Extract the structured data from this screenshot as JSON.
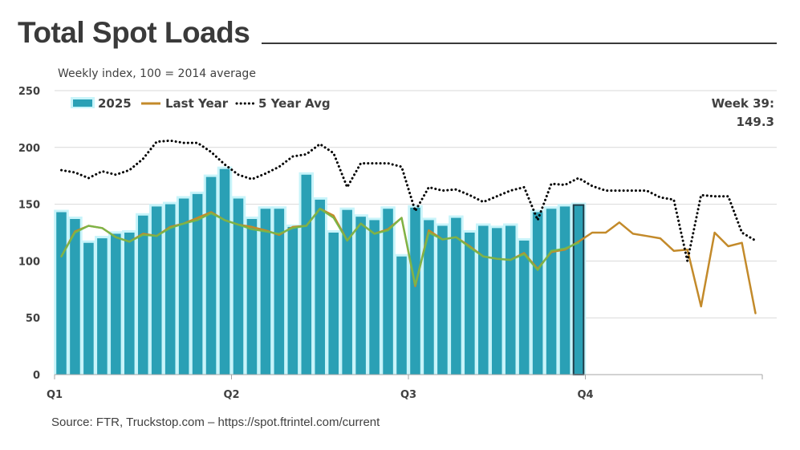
{
  "title": "Total Spot Loads",
  "subtitle": "Weekly index, 100 = 2014 average",
  "callout": {
    "line1": "Week 39:",
    "line2": "149.3"
  },
  "source": "Source: FTR, Truckstop.com – https://spot.ftrintel.com/current",
  "colors": {
    "bars": "#2aa0b5",
    "bar_glow": "#c8f4fa",
    "last_year": "#c38a2a",
    "five_year_avg": "#000000",
    "moving_avg": "#7ab648",
    "highlight_outline": "#1f3b47",
    "grid": "#d9d9d9"
  },
  "chart_data": {
    "type": "bar",
    "title": "Total Spot Loads",
    "subtitle": "Weekly index, 100 = 2014 average",
    "ylim": [
      0,
      250
    ],
    "yticks": [
      0,
      50,
      100,
      150,
      200,
      250
    ],
    "x_total_weeks": 52,
    "quarter_labels": [
      "Q1",
      "Q2",
      "Q3",
      "Q4"
    ],
    "legend": [
      "2025",
      "Last Year",
      "5 Year Avg"
    ],
    "legend_position": "top-left",
    "grid": "horizontal",
    "series": [
      {
        "name": "2025",
        "type": "bar",
        "values": [
          143,
          137,
          116,
          120,
          124,
          125,
          140,
          148,
          150,
          155,
          159,
          174,
          181,
          155,
          137,
          146,
          146,
          130,
          176,
          154,
          125,
          145,
          139,
          136,
          146,
          104,
          147,
          136,
          131,
          138,
          125,
          131,
          129,
          131,
          118,
          143,
          146,
          148,
          149.3
        ]
      },
      {
        "name": "Last Year",
        "type": "line",
        "values": [
          104,
          126,
          131,
          129,
          121,
          117,
          124,
          122,
          130,
          133,
          138,
          143,
          136,
          132,
          130,
          127,
          123,
          130,
          131,
          146,
          140,
          118,
          133,
          124,
          128,
          138,
          78,
          127,
          119,
          121,
          113,
          104,
          102,
          101,
          107,
          93,
          108,
          110,
          117,
          125,
          125,
          134,
          124,
          122,
          120,
          109,
          110,
          60,
          125,
          113,
          116,
          54
        ]
      },
      {
        "name": "5 Year Avg",
        "type": "line",
        "values": [
          180,
          178,
          173,
          179,
          176,
          180,
          190,
          205,
          206,
          204,
          204,
          196,
          185,
          176,
          172,
          177,
          183,
          192,
          194,
          203,
          195,
          165,
          186,
          186,
          186,
          183,
          144,
          165,
          162,
          163,
          158,
          152,
          157,
          162,
          165,
          136,
          168,
          167,
          173,
          166,
          162,
          162,
          162,
          162,
          156,
          154,
          100,
          158,
          157,
          157,
          125,
          118
        ]
      },
      {
        "type": "line",
        "values": [
          104,
          125,
          131,
          129,
          121,
          117,
          123,
          122,
          129,
          133,
          136,
          142,
          136,
          132,
          128,
          126,
          124,
          129,
          131,
          146,
          138,
          118,
          133,
          124,
          127,
          138,
          79,
          125,
          119,
          121,
          112,
          104,
          102,
          101,
          106,
          92,
          109,
          111,
          116
        ]
      }
    ]
  }
}
